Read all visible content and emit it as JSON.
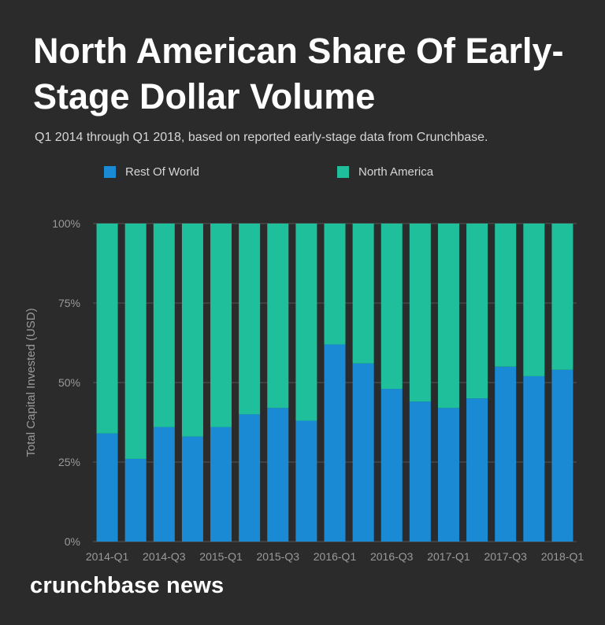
{
  "chart_data": {
    "type": "bar",
    "stacked": true,
    "title": "North American Share Of Early-Stage Dollar Volume",
    "subtitle": "Q1 2014 through Q1 2018, based on reported early-stage data from Crunchbase.",
    "ylabel": "Total Capital Invested (USD)",
    "xlabel": "",
    "ylim": [
      0,
      100
    ],
    "yticks": [
      "0%",
      "25%",
      "50%",
      "75%",
      "100%"
    ],
    "ytick_values": [
      0,
      25,
      50,
      75,
      100
    ],
    "categories": [
      "2014-Q1",
      "2014-Q2",
      "2014-Q3",
      "2014-Q4",
      "2015-Q1",
      "2015-Q2",
      "2015-Q3",
      "2015-Q4",
      "2016-Q1",
      "2016-Q2",
      "2016-Q3",
      "2016-Q4",
      "2017-Q1",
      "2017-Q2",
      "2017-Q3",
      "2017-Q4",
      "2018-Q1"
    ],
    "xtick_labels": [
      "2014-Q1",
      "",
      "2014-Q3",
      "",
      "2015-Q1",
      "",
      "2015-Q3",
      "",
      "2016-Q1",
      "",
      "2016-Q3",
      "",
      "2017-Q1",
      "",
      "2017-Q3",
      "",
      "2018-Q1"
    ],
    "series": [
      {
        "name": "Rest Of World",
        "color": "#1a8ad4",
        "values": [
          34,
          26,
          36,
          33,
          36,
          40,
          42,
          38,
          62,
          56,
          48,
          44,
          42,
          45,
          55,
          52,
          54
        ]
      },
      {
        "name": "North America",
        "color": "#1fbf9b",
        "values": [
          66,
          74,
          64,
          67,
          64,
          60,
          58,
          62,
          38,
          44,
          52,
          56,
          58,
          55,
          45,
          48,
          46
        ]
      }
    ],
    "grid": true,
    "legend_position": "top"
  },
  "colors": {
    "background": "#2b2b2b",
    "gridline": "#555555",
    "axis_text": "#9a9a9a"
  },
  "branding": {
    "text": "crunchbase news"
  }
}
